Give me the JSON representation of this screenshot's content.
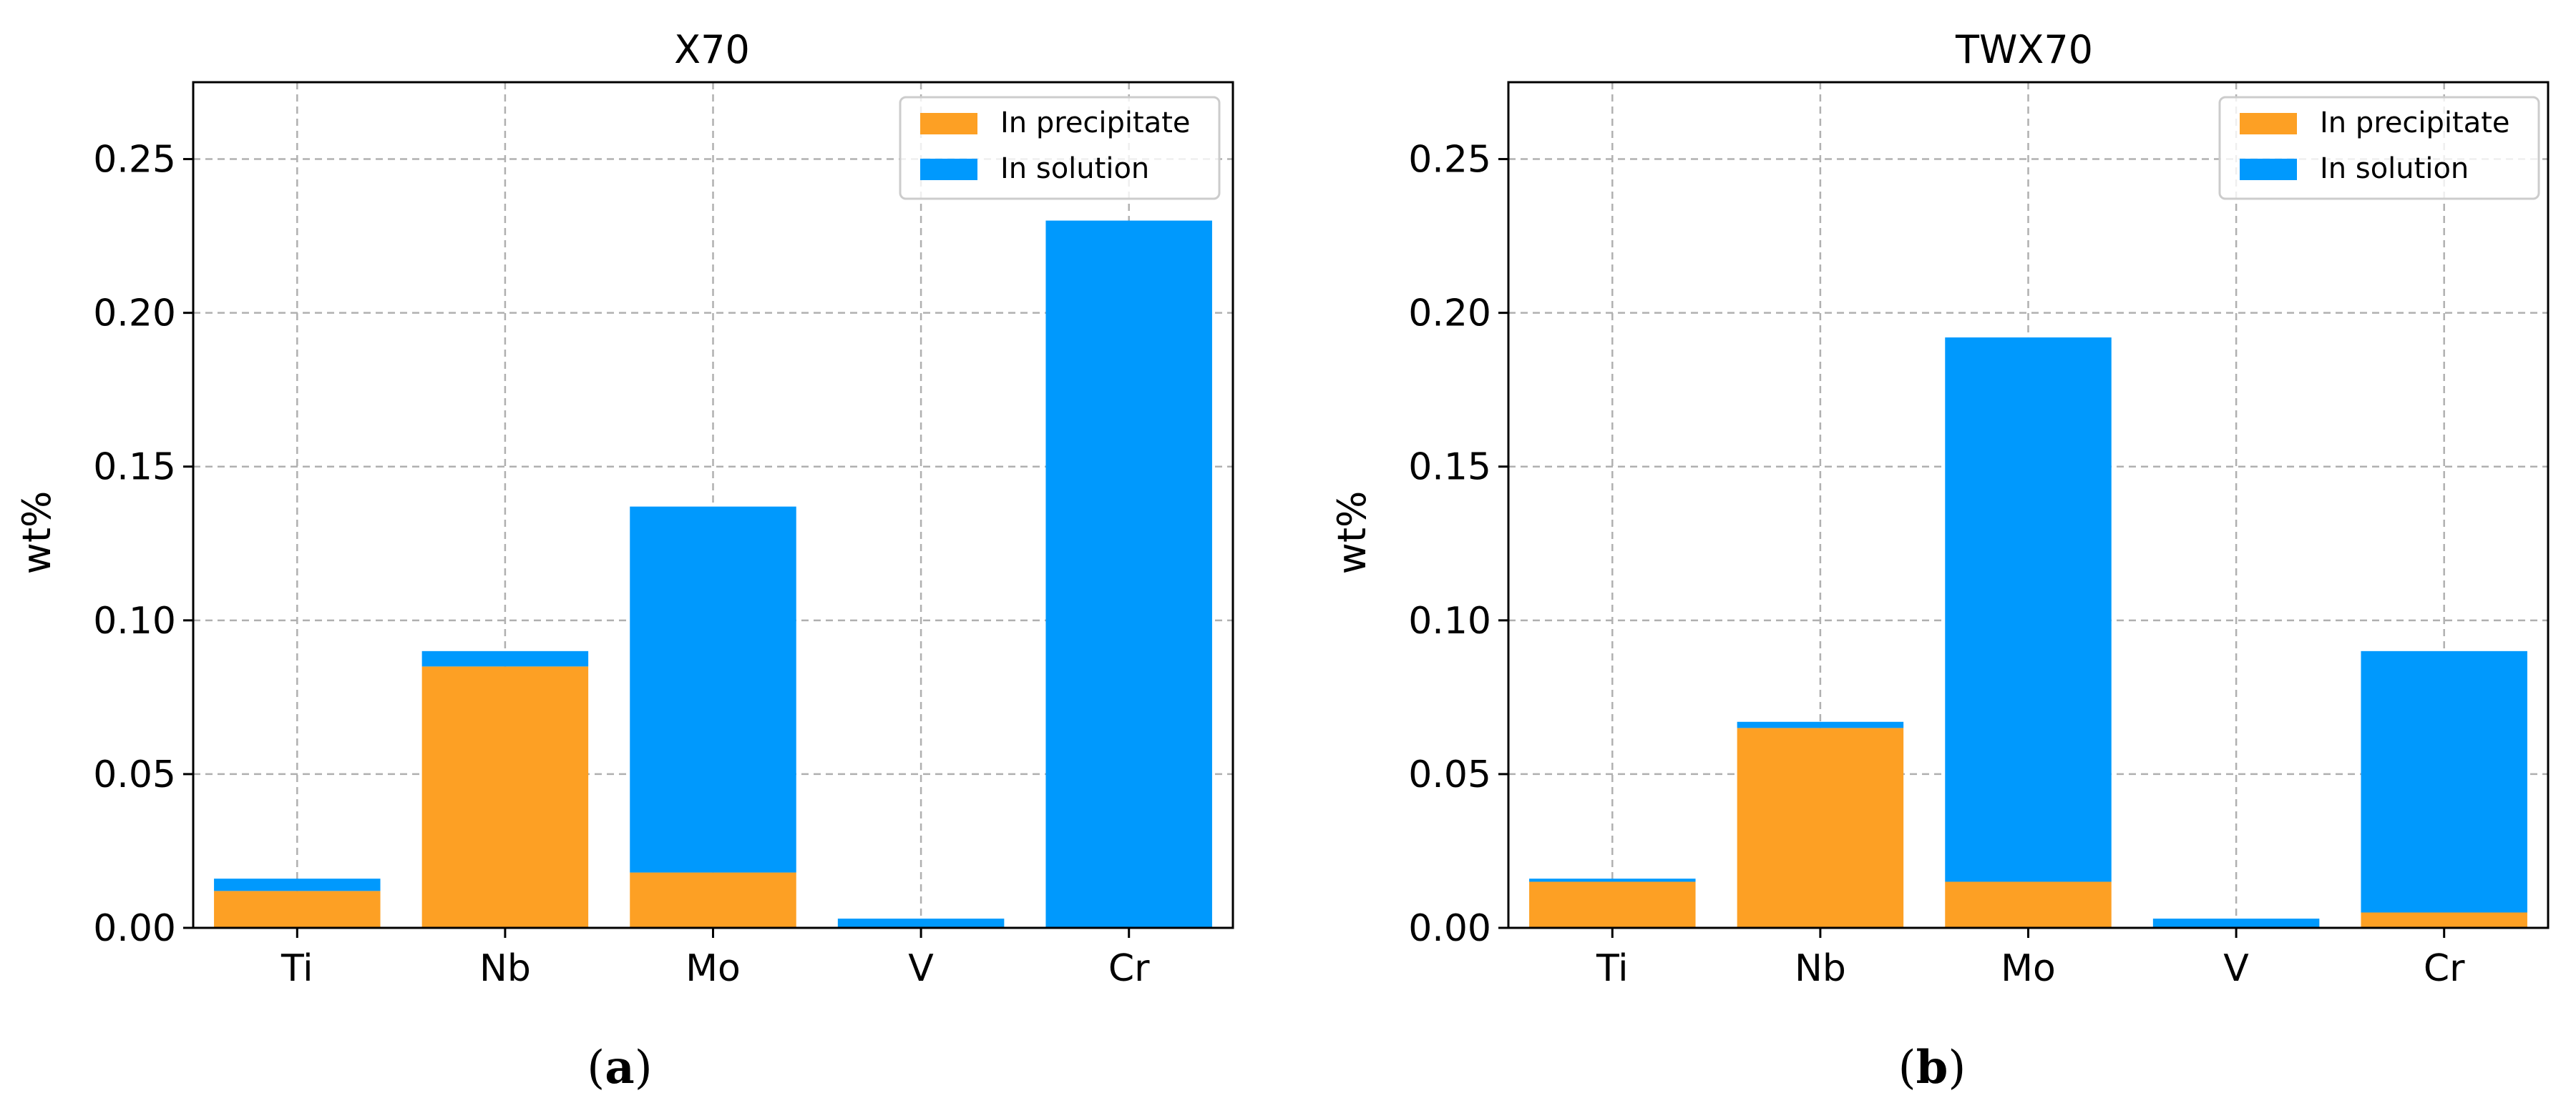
{
  "figure": {
    "panels": [
      {
        "caption_prefix": "(",
        "caption_letter": "a",
        "caption_suffix": ")"
      },
      {
        "caption_prefix": "(",
        "caption_letter": "b",
        "caption_suffix": ")"
      }
    ]
  },
  "colors": {
    "precipitate": "#fda024",
    "solution": "#0099fd",
    "grid": "#b0b0b0",
    "axis": "#000000"
  },
  "chart_data": [
    {
      "type": "bar",
      "stacked": true,
      "title": "X70",
      "xlabel": "",
      "ylabel": "wt%",
      "categories": [
        "Ti",
        "Nb",
        "Mo",
        "V",
        "Cr"
      ],
      "series": [
        {
          "name": "In precipitate",
          "values": [
            0.012,
            0.085,
            0.018,
            0.0,
            0.0
          ]
        },
        {
          "name": "In solution",
          "values": [
            0.004,
            0.005,
            0.119,
            0.003,
            0.23
          ]
        }
      ],
      "ylim": [
        0,
        0.275
      ],
      "yticks": [
        0.0,
        0.05,
        0.1,
        0.15,
        0.2,
        0.25
      ],
      "ytick_labels": [
        "0.00",
        "0.05",
        "0.10",
        "0.15",
        "0.20",
        "0.25"
      ],
      "grid": true,
      "legend": "top-right"
    },
    {
      "type": "bar",
      "stacked": true,
      "title": "TWX70",
      "xlabel": "",
      "ylabel": "wt%",
      "categories": [
        "Ti",
        "Nb",
        "Mo",
        "V",
        "Cr"
      ],
      "series": [
        {
          "name": "In precipitate",
          "values": [
            0.015,
            0.065,
            0.015,
            0.0,
            0.005
          ]
        },
        {
          "name": "In solution",
          "values": [
            0.001,
            0.002,
            0.177,
            0.003,
            0.085
          ]
        }
      ],
      "ylim": [
        0,
        0.275
      ],
      "yticks": [
        0.0,
        0.05,
        0.1,
        0.15,
        0.2,
        0.25
      ],
      "ytick_labels": [
        "0.00",
        "0.05",
        "0.10",
        "0.15",
        "0.20",
        "0.25"
      ],
      "grid": true,
      "legend": "top-right"
    }
  ]
}
